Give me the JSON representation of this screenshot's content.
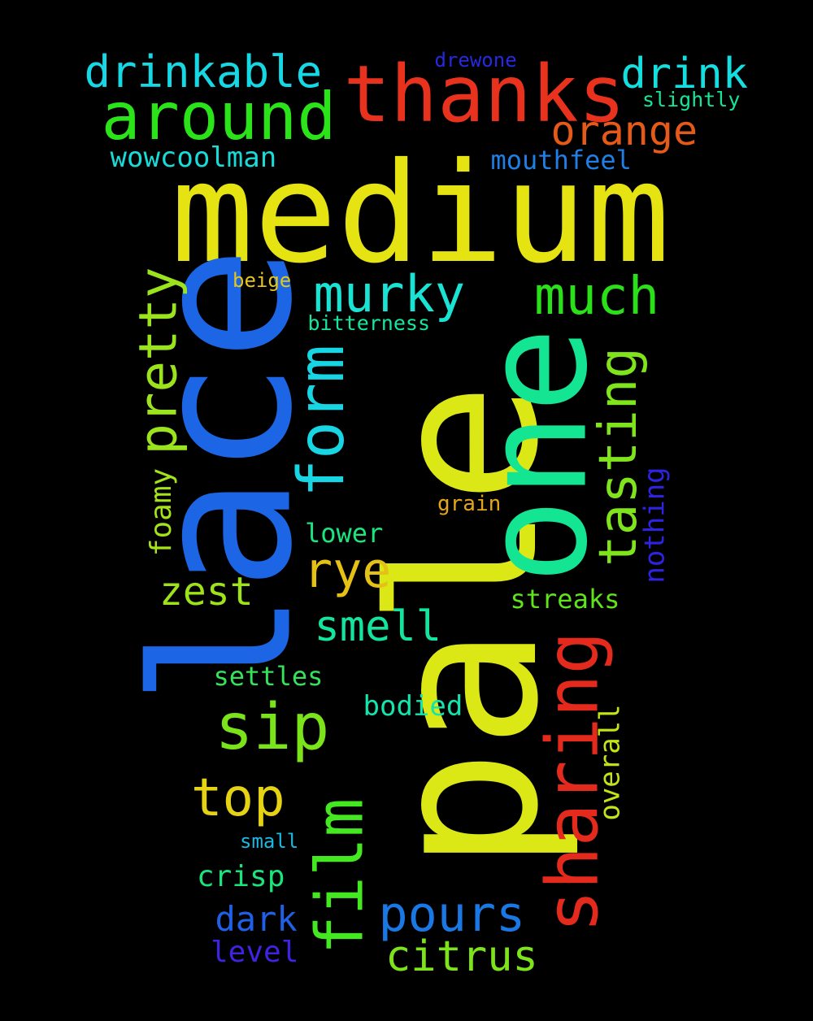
{
  "background": "#000000",
  "words": [
    {
      "text": "medium",
      "color": "#e5e311"
    },
    {
      "text": "pale",
      "color": "#dbe815"
    },
    {
      "text": "lace",
      "color": "#1c66e6"
    },
    {
      "text": "one",
      "color": "#14e592"
    },
    {
      "text": "thanks",
      "color": "#e8321e"
    },
    {
      "text": "sharing",
      "color": "#e32a1d"
    },
    {
      "text": "around",
      "color": "#2ae318"
    },
    {
      "text": "film",
      "color": "#43e820"
    },
    {
      "text": "form",
      "color": "#18d5e3"
    },
    {
      "text": "pretty",
      "color": "#9be31c"
    },
    {
      "text": "tasting",
      "color": "#7fe41b"
    },
    {
      "text": "murky",
      "color": "#19e3d3"
    },
    {
      "text": "much",
      "color": "#2ae018"
    },
    {
      "text": "drinkable",
      "color": "#16d8e5"
    },
    {
      "text": "drink",
      "color": "#14dfe0"
    },
    {
      "text": "orange",
      "color": "#e55a18"
    },
    {
      "text": "sip",
      "color": "#7ae31a"
    },
    {
      "text": "rye",
      "color": "#e5c116"
    },
    {
      "text": "pours",
      "color": "#1a78e5"
    },
    {
      "text": "top",
      "color": "#e6d215"
    },
    {
      "text": "citrus",
      "color": "#7de31a"
    },
    {
      "text": "smell",
      "color": "#14e59e"
    },
    {
      "text": "zest",
      "color": "#9ee31a"
    },
    {
      "text": "dark",
      "color": "#1f60e6"
    },
    {
      "text": "crisp",
      "color": "#1ae57c"
    },
    {
      "text": "foamy",
      "color": "#a4e21a"
    },
    {
      "text": "overall",
      "color": "#c3e516"
    },
    {
      "text": "nothing",
      "color": "#2d23e0"
    },
    {
      "text": "wowcoolman",
      "color": "#18dbd8"
    },
    {
      "text": "mouthfeel",
      "color": "#1f7fe5"
    },
    {
      "text": "bodied",
      "color": "#14e5ac"
    },
    {
      "text": "streaks",
      "color": "#5fe31a"
    },
    {
      "text": "lower",
      "color": "#1ae57f"
    },
    {
      "text": "settles",
      "color": "#34e35a"
    },
    {
      "text": "level",
      "color": "#3f23e3"
    },
    {
      "text": "slightly",
      "color": "#14e596"
    },
    {
      "text": "bitterness",
      "color": "#14e5a0"
    },
    {
      "text": "drewone",
      "color": "#2629e0"
    },
    {
      "text": "beige",
      "color": "#e5c619"
    },
    {
      "text": "grain",
      "color": "#e5a519"
    },
    {
      "text": "small",
      "color": "#1bb8e3"
    }
  ]
}
